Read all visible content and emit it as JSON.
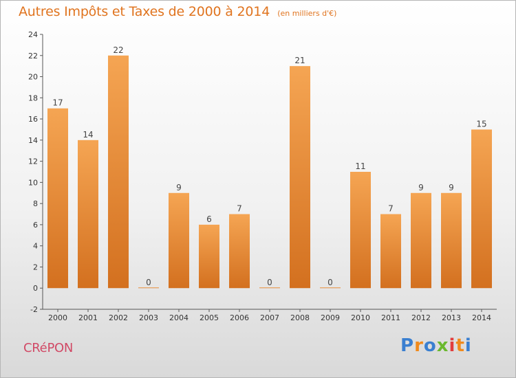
{
  "title": "Autres Impôts et Taxes de 2000 à 2014",
  "subtitle": "(en milliers d'€)",
  "commune": "CRéPON",
  "logo": {
    "text": "Proxiti",
    "colors": [
      "#3a7fd0",
      "#f08a1c",
      "#3a7fd0",
      "#6ab82e",
      "#e23d3d",
      "#f08a1c",
      "#3a7fd0"
    ]
  },
  "colors": {
    "bar_top": "#f5a553",
    "bar_bottom": "#d3701f",
    "title": "#e0741f",
    "commune": "#d14a66"
  },
  "chart_data": {
    "type": "bar",
    "title": "Autres Impôts et Taxes de 2000 à 2014",
    "subtitle": "(en milliers d'€)",
    "xlabel": "",
    "ylabel": "",
    "categories": [
      "2000",
      "2001",
      "2002",
      "2003",
      "2004",
      "2005",
      "2006",
      "2007",
      "2008",
      "2009",
      "2010",
      "2011",
      "2012",
      "2013",
      "2014"
    ],
    "values": [
      17,
      14,
      22,
      0,
      9,
      6,
      7,
      0,
      21,
      0,
      11,
      7,
      9,
      9,
      15
    ],
    "ylim": [
      -2,
      24
    ],
    "yticks": [
      -2,
      0,
      2,
      4,
      6,
      8,
      10,
      12,
      14,
      16,
      18,
      20,
      22,
      24
    ],
    "grid": false,
    "legend": "none"
  }
}
